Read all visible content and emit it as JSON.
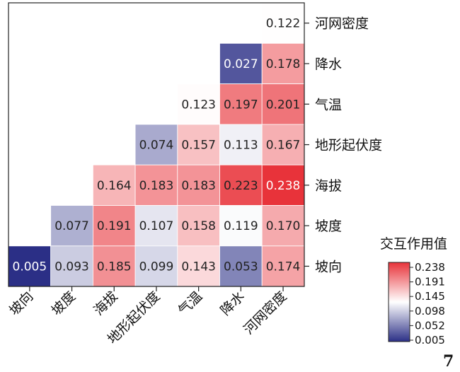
{
  "chart_data": {
    "type": "heatmap",
    "layout": "lower-triangular",
    "categories": [
      "坡向",
      "坡度",
      "海拔",
      "地形起伏度",
      "气温",
      "降水",
      "河网密度"
    ],
    "rows": [
      {
        "name": "河网密度",
        "values": [
          null,
          null,
          null,
          null,
          null,
          null,
          0.122
        ]
      },
      {
        "name": "降水",
        "values": [
          null,
          null,
          null,
          null,
          null,
          0.027,
          0.178
        ]
      },
      {
        "name": "气温",
        "values": [
          null,
          null,
          null,
          null,
          0.123,
          0.197,
          0.201
        ]
      },
      {
        "name": "地形起伏度",
        "values": [
          null,
          null,
          null,
          0.074,
          0.157,
          0.113,
          0.167
        ]
      },
      {
        "name": "海拔",
        "values": [
          null,
          null,
          0.164,
          0.183,
          0.183,
          0.223,
          0.238
        ]
      },
      {
        "name": "坡度",
        "values": [
          null,
          0.077,
          0.191,
          0.107,
          0.158,
          0.119,
          0.17
        ]
      },
      {
        "name": "坡向",
        "values": [
          0.005,
          0.093,
          0.185,
          0.099,
          0.143,
          0.053,
          0.174
        ]
      }
    ],
    "colorbar": {
      "title": "交互作用值",
      "ticks": [
        "0.238",
        "0.191",
        "0.145",
        "0.098",
        "0.052",
        "0.005"
      ],
      "min": 0.005,
      "max": 0.238,
      "colors": {
        "low": "#2b2f86",
        "mid": "#ffffff",
        "high": "#e8333a"
      }
    },
    "page_marker": "7"
  }
}
